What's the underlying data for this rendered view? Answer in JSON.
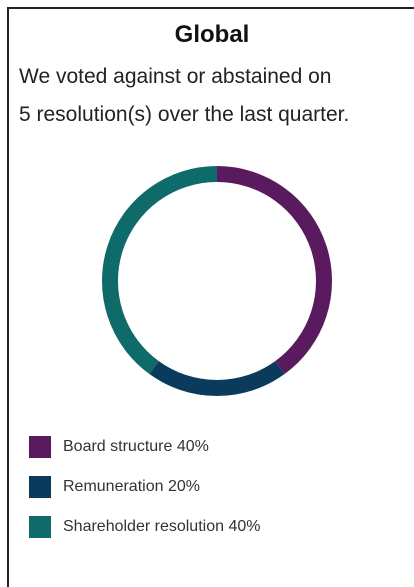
{
  "panel": {
    "title": "Global",
    "description_line1": "We voted against or abstained on",
    "description_line2": "5 resolution(s) over the last quarter."
  },
  "chart_data": {
    "type": "pie",
    "style": "donut",
    "categories": [
      "Board structure",
      "Remuneration",
      "Shareholder resolution"
    ],
    "values": [
      40,
      20,
      40
    ],
    "unit": "%",
    "colors": [
      "#5a1b5e",
      "#0b3b5c",
      "#0e6b6a"
    ],
    "legend": [
      {
        "label": "Board structure 40%",
        "color": "#5a1b5e"
      },
      {
        "label": "Remuneration 20%",
        "color": "#0b3b5c"
      },
      {
        "label": "Shareholder resolution 40%",
        "color": "#0e6b6a"
      }
    ],
    "legend_placement": "bottom-left"
  }
}
